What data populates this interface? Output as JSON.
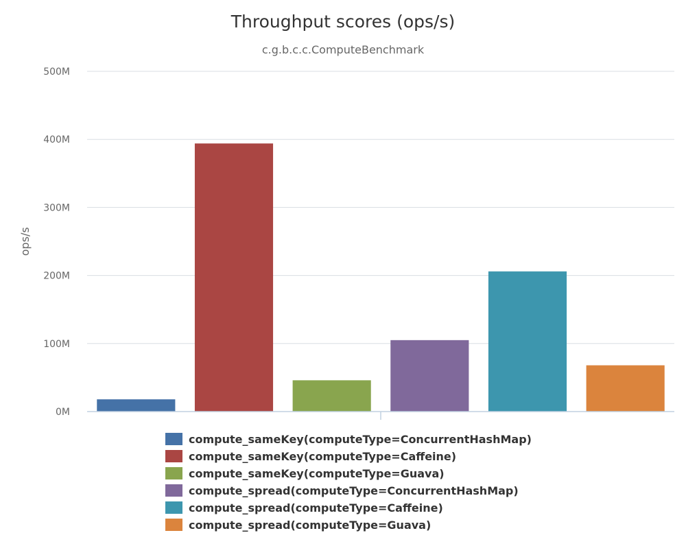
{
  "chart_data": {
    "type": "bar",
    "title": "Throughput scores (ops/s)",
    "subtitle": "c.g.b.c.c.ComputeBenchmark",
    "ylabel": "ops/s",
    "xlabel": "",
    "ylim": [
      0,
      500000000
    ],
    "yticks": [
      0,
      100000000,
      200000000,
      300000000,
      400000000,
      500000000
    ],
    "ytick_labels": [
      "0M",
      "100M",
      "200M",
      "300M",
      "400M",
      "500M"
    ],
    "grid": true,
    "legend_position": "bottom",
    "series": [
      {
        "name": "compute_sameKey(computeType=ConcurrentHashMap)",
        "value": 18000000,
        "color": "#4572a7"
      },
      {
        "name": "compute_sameKey(computeType=Caffeine)",
        "value": 394000000,
        "color": "#aa4643"
      },
      {
        "name": "compute_sameKey(computeType=Guava)",
        "value": 46000000,
        "color": "#89a54e"
      },
      {
        "name": "compute_spread(computeType=ConcurrentHashMap)",
        "value": 105000000,
        "color": "#80699b"
      },
      {
        "name": "compute_spread(computeType=Caffeine)",
        "value": 206000000,
        "color": "#3d96ae"
      },
      {
        "name": "compute_spread(computeType=Guava)",
        "value": 68000000,
        "color": "#db843d"
      }
    ]
  }
}
